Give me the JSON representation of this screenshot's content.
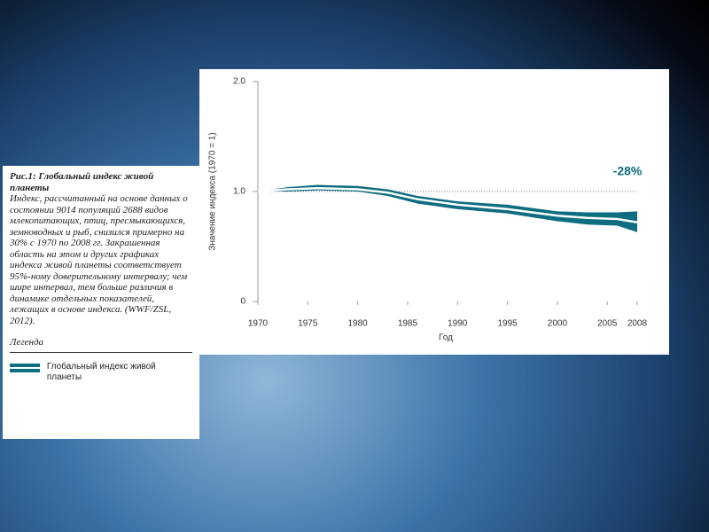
{
  "caption": {
    "title": "Рис.1: Глобальный индекс живой планеты",
    "text": "Индекс, рассчитанный на основе данных о состоянии 9014 популяций 2688 видов млекопитающих, птиц, пресмыкающихся, земноводных и рыб, снизился примерно на 30% с 1970 по 2008 гг. Закрашенная область на этом и других графиках индекса живой планеты соответствует 95%-ному доверительному интервалу; чем шире интервал, тем больше различия в динамике отдельных показателей, лежащих в основе индекса. (WWF/ZSL, 2012).",
    "legend_title": "Легенда"
  },
  "chart_data": {
    "type": "line",
    "x_label": "Год",
    "y_label": "Значение индекса (1970 = 1)",
    "annotation": "-28%",
    "x": [
      1970,
      1973,
      1976,
      1980,
      1983,
      1986,
      1990,
      1995,
      2000,
      2003,
      2006,
      2008
    ],
    "series": [
      {
        "name": "Глобальный индекс живой планеты",
        "color": "#0e6d80",
        "values": [
          1.0,
          1.02,
          1.03,
          1.02,
          0.99,
          0.93,
          0.88,
          0.84,
          0.78,
          0.76,
          0.75,
          0.72
        ],
        "upper": [
          1.0,
          1.04,
          1.06,
          1.05,
          1.02,
          0.96,
          0.91,
          0.88,
          0.82,
          0.81,
          0.81,
          0.82
        ],
        "lower": [
          1.0,
          1.0,
          1.01,
          1.0,
          0.96,
          0.89,
          0.84,
          0.8,
          0.73,
          0.7,
          0.69,
          0.63
        ]
      }
    ],
    "reference_line": 1,
    "xlim": [
      1970,
      2008
    ],
    "xticks": [
      1970,
      1975,
      1980,
      1985,
      1990,
      1995,
      2000,
      2005,
      2008
    ],
    "ylim": [
      0,
      2
    ],
    "yticks": [
      0,
      {
        "value": 1,
        "label": "1.0"
      },
      {
        "value": 2,
        "label": "2.0"
      }
    ]
  }
}
